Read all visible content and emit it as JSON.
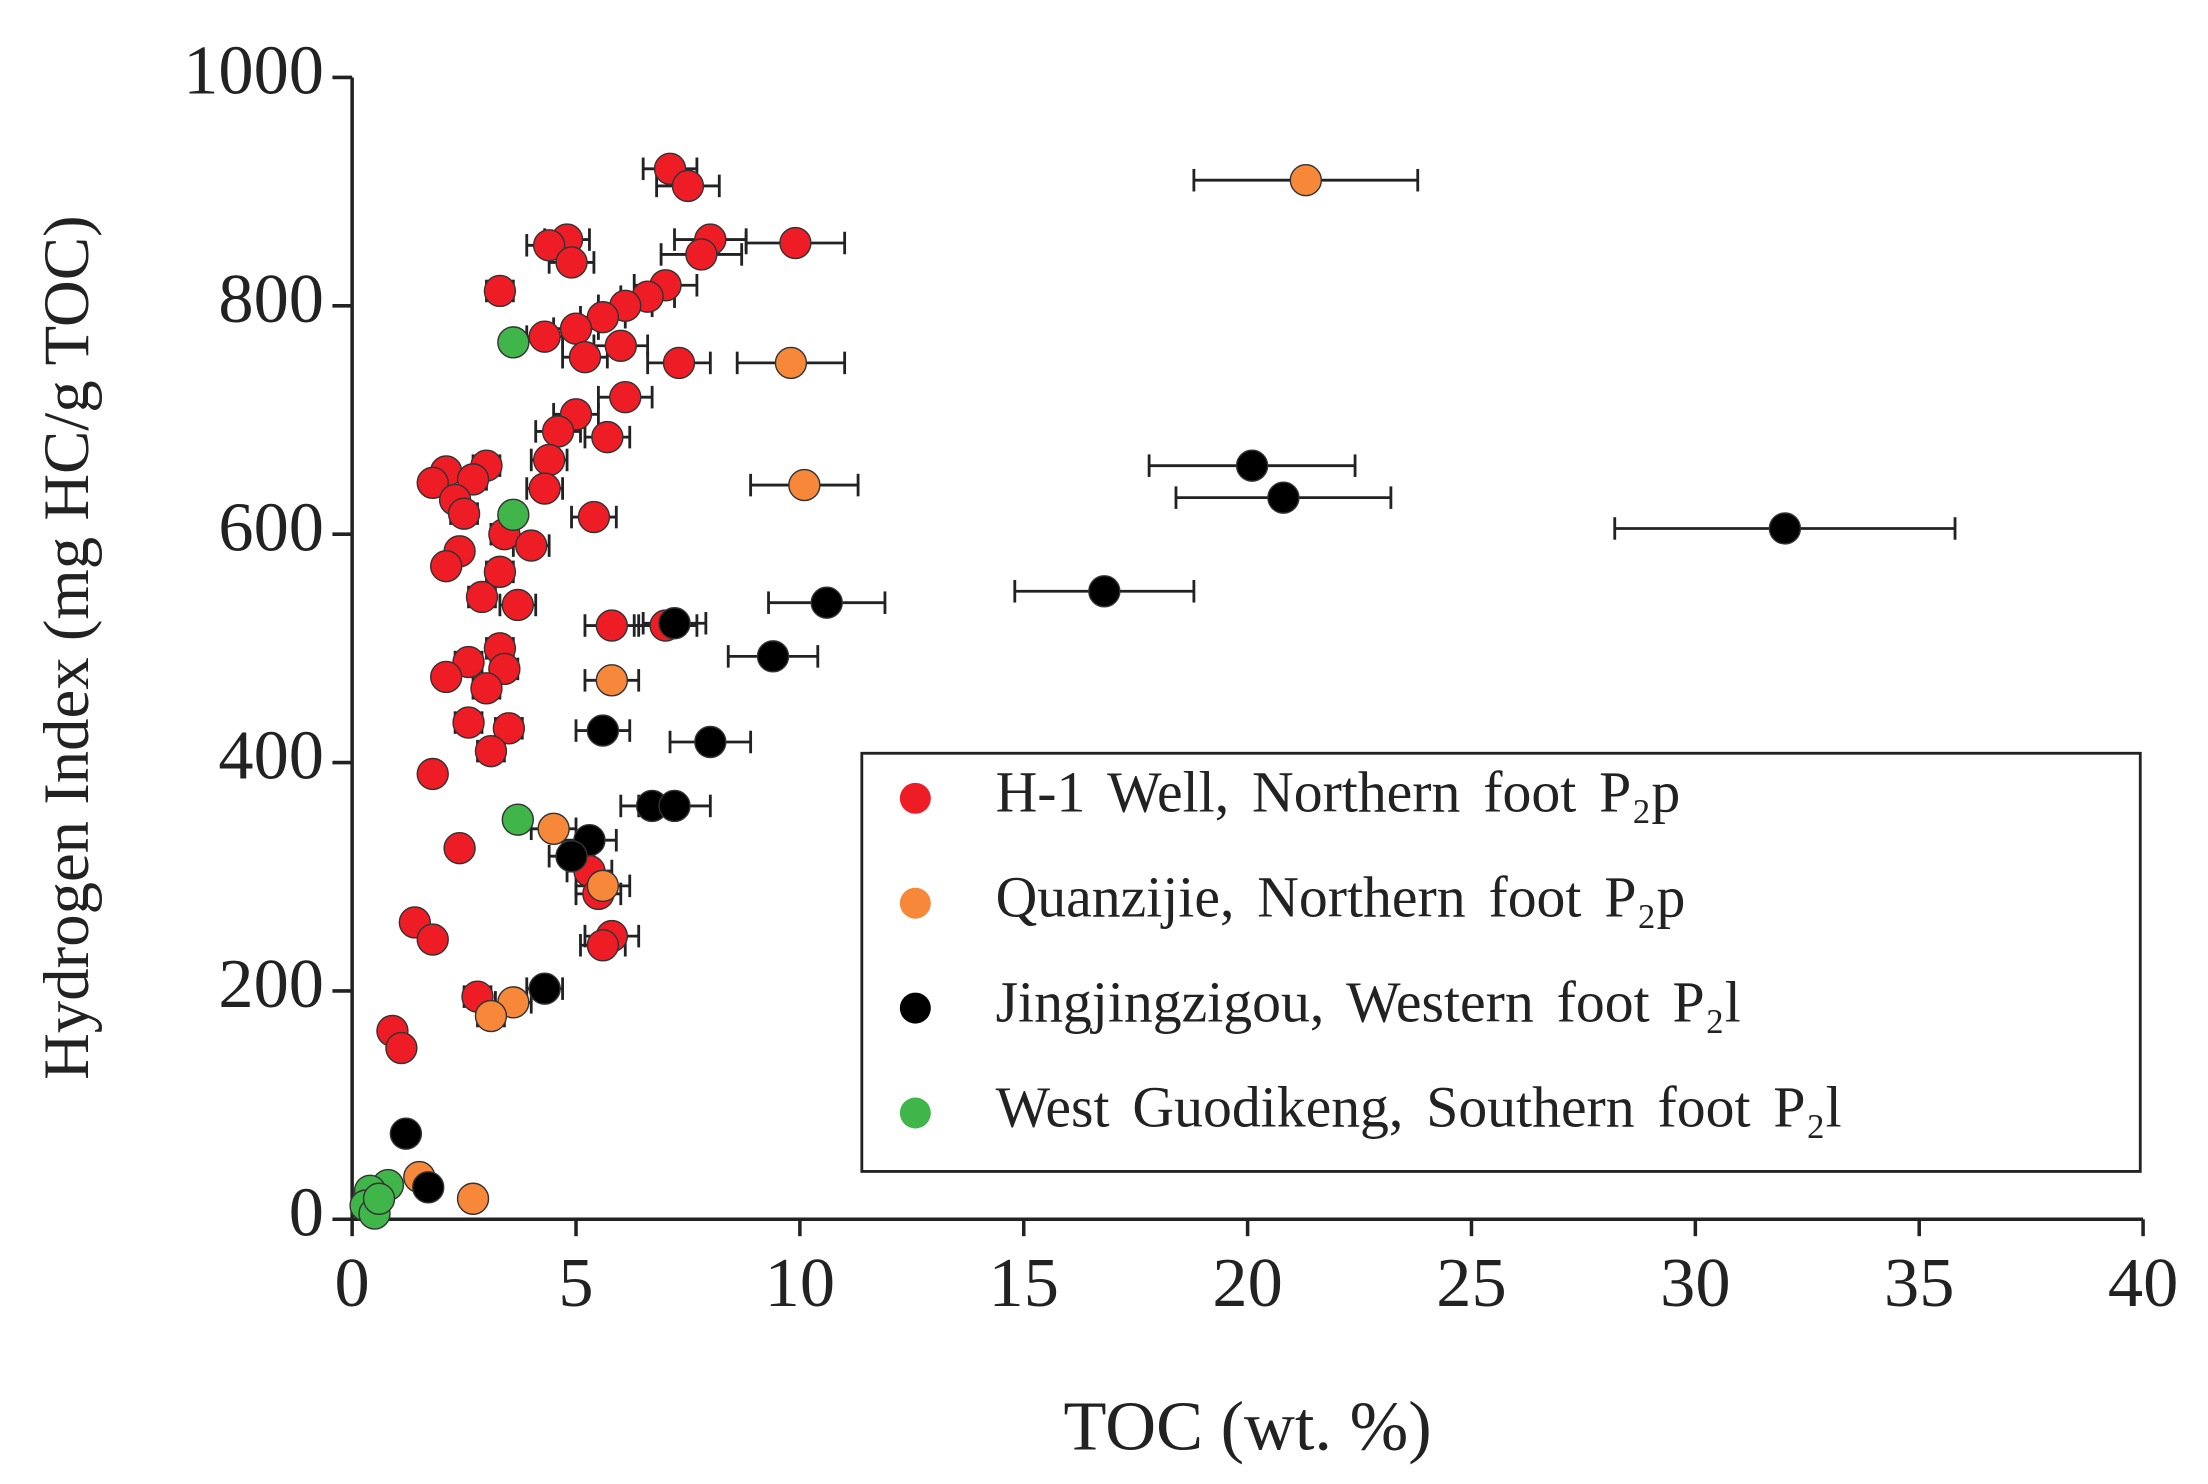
{
  "chart_data": {
    "type": "scatter",
    "xlabel": "TOC (wt. %)",
    "ylabel": "Hydrogen Index (mg HC/g TOC)",
    "xlim": [
      0,
      40
    ],
    "xticks": [
      0,
      5,
      10,
      15,
      20,
      25,
      30,
      35,
      40
    ],
    "ylim": [
      0,
      1000
    ],
    "yticks": [
      0,
      200,
      400,
      600,
      800,
      1000
    ],
    "legend": "lower right",
    "series": [
      {
        "name": "H-1  Well, Northern foot P₂p",
        "color": "#ee1c25",
        "x": [
          7.1,
          7.5,
          4.8,
          4.4,
          8.0,
          9.9,
          4.9,
          7.8,
          3.3,
          7.0,
          6.6,
          6.1,
          5.6,
          5.0,
          4.3,
          6.0,
          5.2,
          7.3,
          6.1,
          5.0,
          4.6,
          5.7,
          4.4,
          3.0,
          2.1,
          2.7,
          1.8,
          4.3,
          2.3,
          2.5,
          5.4,
          3.4,
          4.0,
          2.4,
          2.1,
          3.3,
          2.9,
          3.7,
          5.8,
          7.0,
          3.3,
          2.6,
          3.4,
          2.1,
          3.0,
          2.6,
          3.5,
          3.1,
          1.8,
          2.4,
          5.3,
          5.5,
          1.4,
          1.8,
          5.8,
          5.6,
          2.8,
          0.9,
          1.1
        ],
        "values": [
          920,
          905,
          858,
          853,
          858,
          855,
          838,
          845,
          813,
          818,
          808,
          800,
          790,
          780,
          773,
          765,
          755,
          750,
          720,
          705,
          690,
          685,
          665,
          660,
          655,
          648,
          645,
          640,
          630,
          618,
          615,
          600,
          590,
          585,
          572,
          567,
          545,
          538,
          520,
          520,
          500,
          488,
          482,
          475,
          465,
          435,
          430,
          410,
          390,
          325,
          305,
          285,
          260,
          245,
          248,
          240,
          195,
          165,
          150
        ],
        "xerr": [
          0.6,
          0.7,
          0.5,
          0.5,
          0.8,
          1.1,
          0.5,
          0.9,
          0.3,
          0.7,
          0.6,
          0.6,
          0.5,
          0.5,
          0.4,
          0.6,
          0.5,
          0.7,
          0.6,
          0.5,
          0.5,
          0.5,
          0.4,
          0.3,
          0.2,
          0.3,
          null,
          0.4,
          0.2,
          0.3,
          0.5,
          0.3,
          0.4,
          0.2,
          0.2,
          0.3,
          0.3,
          0.4,
          0.6,
          0.7,
          0.3,
          0.3,
          0.3,
          0.2,
          0.3,
          0.3,
          0.3,
          0.3,
          null,
          0.2,
          0.5,
          0.5,
          null,
          null,
          0.6,
          0.5,
          0.3,
          null,
          null
        ]
      },
      {
        "name": "Quanzijie, Northern foot P₂p",
        "color": "#f7883a",
        "x": [
          21.3,
          9.8,
          10.1,
          5.8,
          4.5,
          5.6,
          3.6,
          3.1,
          1.5,
          2.7
        ],
        "values": [
          910,
          750,
          643,
          472,
          342,
          292,
          190,
          178,
          37,
          18
        ],
        "xerr": [
          2.5,
          1.2,
          1.2,
          0.6,
          0.5,
          0.6,
          0.4,
          0.3,
          null,
          null
        ]
      },
      {
        "name": "Jingjingzigou, Western foot P₂l",
        "color": "#000000",
        "x": [
          20.1,
          20.8,
          32.0,
          16.8,
          10.6,
          9.4,
          7.2,
          8.0,
          5.6,
          6.7,
          7.2,
          5.3,
          4.9,
          4.3,
          1.2,
          1.7
        ],
        "values": [
          660,
          632,
          605,
          550,
          540,
          493,
          522,
          418,
          428,
          362,
          362,
          332,
          318,
          202,
          75,
          28
        ],
        "xerr": [
          2.3,
          2.4,
          3.8,
          2.0,
          1.3,
          1.0,
          0.7,
          0.9,
          0.6,
          0.7,
          0.8,
          0.6,
          0.5,
          0.4,
          null,
          null
        ]
      },
      {
        "name": "West Guodikeng, Southern foot P₂l",
        "color": "#3fb54a",
        "x": [
          3.6,
          3.6,
          3.7,
          0.8,
          0.4,
          0.3,
          0.5,
          0.6
        ],
        "values": [
          768,
          617,
          350,
          30,
          25,
          12,
          5,
          18
        ],
        "xerr": [
          null,
          null,
          null,
          null,
          null,
          null,
          null,
          null
        ]
      }
    ]
  }
}
